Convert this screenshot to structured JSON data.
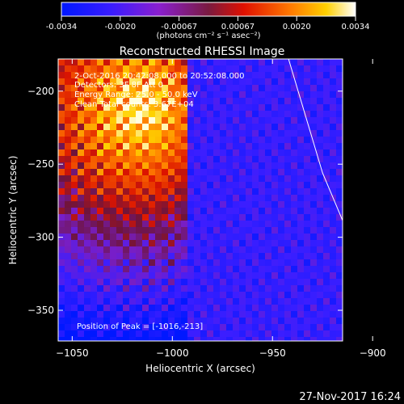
{
  "colorbar": {
    "ticks": [
      "-0.0034",
      "-0.0020",
      "-0.00067",
      "0.00067",
      "0.0020",
      "0.0034"
    ],
    "unit_label": "(photons cm⁻² s⁻¹ asec⁻²)",
    "range": [
      -0.0034,
      0.0034
    ]
  },
  "chart_data": {
    "type": "heatmap",
    "title": "Reconstructed RHESSI Image",
    "xlabel": "Heliocentric X (arcsec)",
    "ylabel": "Heliocentric Y (arcsec)",
    "xlim": [
      -1057,
      -915
    ],
    "ylim": [
      -371,
      -178
    ],
    "x_ticks": [
      -1050,
      -1000,
      -950,
      -900
    ],
    "y_ticks": [
      -200,
      -250,
      -300,
      -350
    ],
    "x_tick_labels": [
      "−1050",
      "−1000",
      "−950",
      "−900"
    ],
    "y_tick_labels": [
      "−200",
      "−250",
      "−300",
      "−350"
    ],
    "limb_line": [
      [
        -942,
        -178
      ],
      [
        -925,
        -256
      ],
      [
        -905,
        -321
      ],
      [
        -880,
        -371
      ]
    ],
    "peak": [
      -1016,
      -213
    ],
    "annotations": {
      "time_range": "2-Oct-2016 20:42:08.000 to 20:52:08.000",
      "detectors": "Detectors: 3F 8F  Att 0",
      "energy": "Energy Range: 25.0 - 50.0 keV",
      "clean": "Clean     Total counts: 3.67E+04",
      "peak_label": "Position of Peak = [-1016,-213]"
    }
  },
  "footer": {
    "timestamp": "27-Nov-2017 16:24"
  }
}
